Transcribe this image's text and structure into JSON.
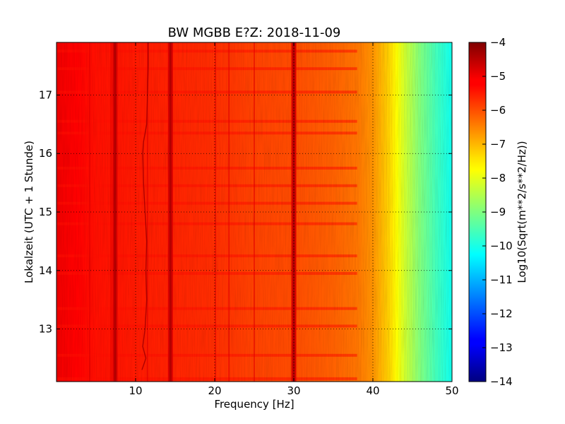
{
  "chart_data": {
    "type": "heatmap",
    "title": "BW MGBB E?Z: 2018-11-09",
    "xlabel": "Frequency [Hz]",
    "ylabel": "Lokalzeit (UTC + 1 Stunde)",
    "xlim": [
      0,
      50
    ],
    "ylim": [
      17.9,
      12.1
    ],
    "x_ticks": [
      10,
      20,
      30,
      40,
      50
    ],
    "y_ticks": [
      13,
      14,
      15,
      16,
      17
    ],
    "grid": true,
    "colormap": "jet",
    "colorbar": {
      "label": "Log10(Sqrt(m**2/s**2/Hz))",
      "range": [
        -14,
        -4
      ],
      "ticks": [
        -4,
        -5,
        -6,
        -7,
        -8,
        -9,
        -10,
        -11,
        -12,
        -13,
        -14
      ]
    },
    "spectrum_profile": {
      "frequency_hz": [
        0,
        5,
        10,
        15,
        20,
        25,
        30,
        35,
        38,
        40,
        42,
        44,
        46,
        48,
        50
      ],
      "level": [
        -5.1,
        -5.4,
        -5.5,
        -5.6,
        -5.7,
        -5.9,
        -6.0,
        -6.2,
        -6.4,
        -6.7,
        -7.3,
        -8.2,
        -9.0,
        -9.6,
        -10.1
      ]
    },
    "spectral_lines_hz": [
      7.4,
      14.4,
      30.0
    ],
    "weaker_lines_hz": [
      4.2,
      6.9,
      11.5,
      20.1,
      21.8,
      25.0
    ],
    "wandering_line": {
      "time_h": [
        12.3,
        12.5,
        12.7,
        13.0,
        13.5,
        14.0,
        14.5,
        15.0,
        15.5,
        16.0,
        16.2,
        16.5,
        17.0,
        17.5,
        17.9
      ],
      "frequency_hz": [
        10.8,
        11.3,
        10.9,
        11.2,
        11.4,
        11.3,
        11.4,
        11.2,
        11.0,
        10.9,
        11.0,
        11.4,
        11.5,
        11.6,
        11.6
      ]
    },
    "broadband_bursts_h": [
      12.15,
      12.55,
      13.05,
      13.35,
      13.95,
      14.25,
      14.8,
      15.15,
      15.45,
      15.75,
      16.35,
      16.55,
      17.05,
      17.45,
      17.75
    ]
  }
}
